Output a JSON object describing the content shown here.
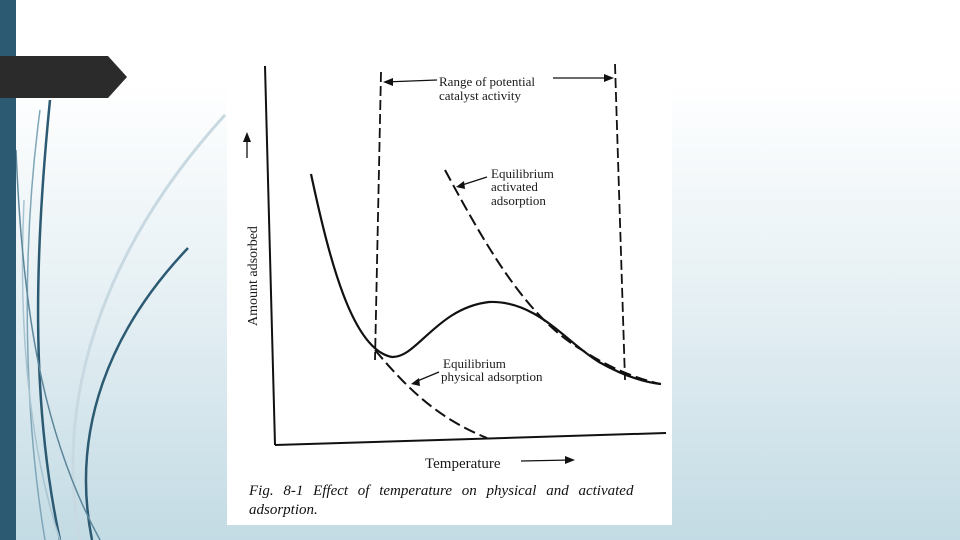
{
  "slide": {
    "accent_bar_color": "#2c5a72",
    "tab_color": "#2b2b2b"
  },
  "figure": {
    "range_label_line1": "Range of potential",
    "range_label_line2": "catalyst activity",
    "eq_activated_line1": "Equilibrium",
    "eq_activated_line2": "activated",
    "eq_activated_line3": "adsorption",
    "eq_physical_line1": "Equilibrium",
    "eq_physical_line2": "physical adsorption",
    "y_axis_label": "Amount adsorbed",
    "x_axis_label": "Temperature",
    "caption_number": "Fig. 8-1",
    "caption_text": "Effect of temperature on physical and activated adsorption."
  }
}
